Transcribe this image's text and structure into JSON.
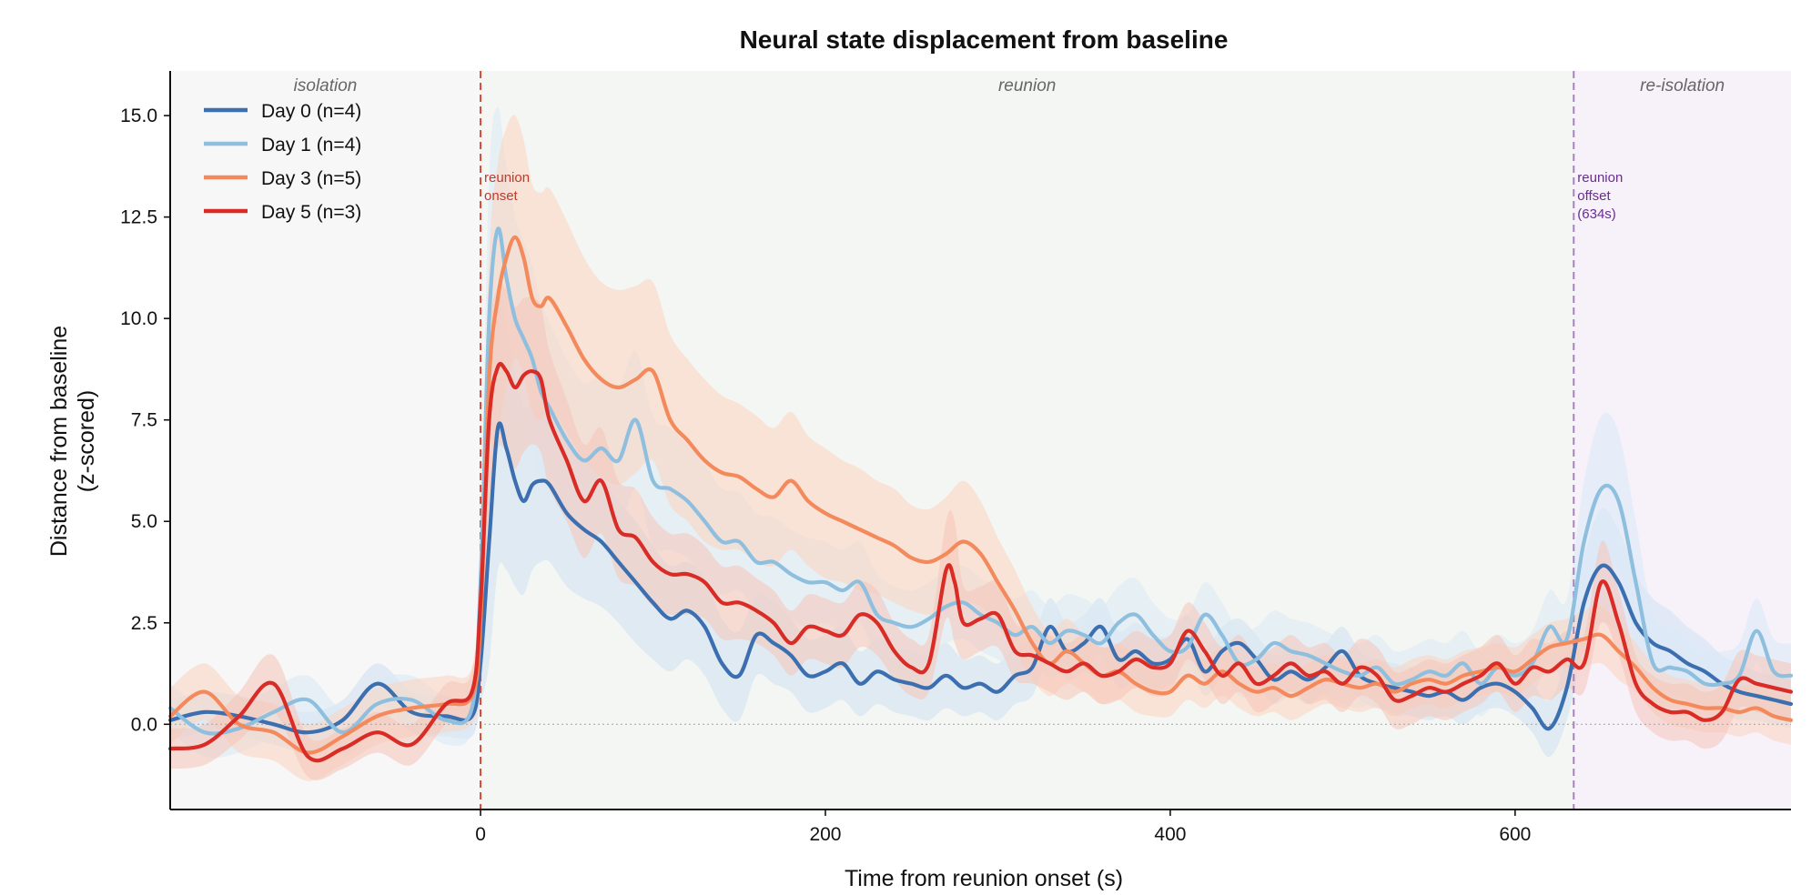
{
  "chart_data": {
    "type": "line",
    "title": "Neural state displacement from baseline",
    "xlabel": "Time from reunion onset (s)",
    "ylabel": [
      "Distance from baseline",
      "(z-scored)"
    ],
    "xlim": [
      -180,
      760
    ],
    "ylim": [
      -2.1,
      16.1
    ],
    "x_ticks": [
      0,
      200,
      400,
      600
    ],
    "y_ticks": [
      0.0,
      2.5,
      5.0,
      7.5,
      10.0,
      12.5,
      15.0
    ],
    "x_tick_labels": [
      "0",
      "200",
      "400",
      "600"
    ],
    "y_tick_labels": [
      "0.0",
      "2.5",
      "5.0",
      "7.5",
      "10.0",
      "12.5",
      "15.0"
    ],
    "grid": false,
    "legend_position": "top-left",
    "baseline_y": 0,
    "regions": [
      {
        "label": "isolation",
        "x0": -180,
        "x1": 0,
        "color": "#f7f7f7"
      },
      {
        "label": "reunion",
        "x0": 0,
        "x1": 634,
        "color": "#f3f6f2"
      },
      {
        "label": "re-isolation",
        "x0": 634,
        "x1": 760,
        "color": "#f7f1fa"
      }
    ],
    "vlines": [
      {
        "x": 0,
        "color": "#d94a3a",
        "label": [
          "reunion",
          "onset"
        ]
      },
      {
        "x": 634,
        "color": "#a882c0",
        "label": [
          "reunion",
          "offset",
          "(634s)"
        ]
      }
    ],
    "series": [
      {
        "name": "Day 0  (n=4)",
        "color": "#3b6fb0",
        "band_color": "#cfe0f3",
        "x": [
          -180,
          -160,
          -140,
          -120,
          -100,
          -80,
          -60,
          -40,
          -20,
          -5,
          0,
          5,
          10,
          15,
          20,
          25,
          30,
          35,
          40,
          50,
          60,
          70,
          80,
          90,
          100,
          110,
          120,
          130,
          140,
          150,
          160,
          170,
          180,
          190,
          200,
          210,
          220,
          230,
          240,
          250,
          260,
          270,
          280,
          290,
          300,
          310,
          320,
          330,
          340,
          350,
          360,
          370,
          380,
          390,
          400,
          410,
          420,
          430,
          440,
          450,
          460,
          470,
          480,
          490,
          500,
          510,
          520,
          530,
          540,
          550,
          560,
          570,
          580,
          590,
          600,
          610,
          620,
          630,
          640,
          650,
          660,
          670,
          680,
          690,
          700,
          710,
          720,
          730,
          740,
          750,
          760
        ],
        "y": [
          0.1,
          0.3,
          0.2,
          0.0,
          -0.2,
          0.1,
          1.0,
          0.3,
          0.2,
          0.2,
          1.5,
          4.5,
          7.3,
          6.8,
          6.0,
          5.5,
          5.9,
          6.0,
          5.9,
          5.2,
          4.8,
          4.5,
          4.0,
          3.5,
          3.0,
          2.6,
          2.8,
          2.4,
          1.5,
          1.2,
          2.2,
          2.0,
          1.7,
          1.2,
          1.3,
          1.5,
          1.0,
          1.3,
          1.1,
          1.0,
          0.9,
          1.2,
          0.9,
          1.0,
          0.8,
          1.2,
          1.4,
          2.4,
          1.8,
          2.0,
          2.4,
          1.6,
          1.8,
          1.5,
          1.6,
          2.1,
          1.3,
          1.8,
          2.0,
          1.6,
          1.1,
          1.3,
          1.1,
          1.4,
          1.8,
          1.2,
          1.0,
          0.9,
          0.8,
          0.7,
          0.8,
          0.6,
          0.9,
          1.0,
          0.8,
          0.4,
          -0.1,
          0.9,
          3.0,
          3.9,
          3.5,
          2.5,
          2.0,
          1.8,
          1.5,
          1.3,
          1.0,
          0.8,
          0.7,
          0.6,
          0.5
        ],
        "err": [
          0.5,
          0.5,
          0.5,
          0.5,
          0.5,
          0.5,
          0.5,
          0.5,
          0.5,
          0.5,
          1.0,
          3.0,
          3.5,
          3.0,
          2.6,
          2.3,
          2.1,
          2.0,
          1.9,
          1.8,
          1.7,
          1.6,
          1.5,
          1.5,
          1.4,
          1.3,
          1.2,
          1.2,
          1.1,
          1.1,
          1.0,
          1.0,
          0.9,
          0.9,
          0.9,
          0.9,
          0.8,
          0.8,
          0.8,
          0.8,
          0.8,
          0.8,
          0.7,
          0.7,
          0.7,
          0.7,
          0.7,
          0.7,
          0.7,
          0.7,
          0.7,
          0.7,
          0.7,
          0.7,
          0.6,
          0.6,
          0.6,
          0.6,
          0.6,
          0.6,
          0.6,
          0.6,
          0.6,
          0.6,
          0.6,
          0.6,
          0.6,
          0.6,
          0.6,
          0.6,
          0.6,
          0.6,
          0.6,
          0.6,
          0.6,
          0.6,
          0.7,
          0.8,
          1.1,
          1.4,
          1.3,
          1.2,
          1.1,
          1.0,
          0.9,
          0.8,
          0.7,
          0.7,
          0.6,
          0.6,
          0.6
        ]
      },
      {
        "name": "Day 1  (n=4)",
        "color": "#8ebfde",
        "band_color": "#dbe9f6",
        "x": [
          -180,
          -160,
          -140,
          -120,
          -100,
          -80,
          -60,
          -40,
          -20,
          -5,
          0,
          5,
          10,
          15,
          20,
          25,
          30,
          35,
          40,
          50,
          60,
          70,
          80,
          90,
          100,
          110,
          120,
          130,
          140,
          150,
          160,
          170,
          180,
          190,
          200,
          210,
          220,
          230,
          240,
          250,
          260,
          270,
          280,
          290,
          300,
          310,
          320,
          330,
          340,
          350,
          360,
          370,
          380,
          390,
          400,
          410,
          420,
          430,
          440,
          450,
          460,
          470,
          480,
          490,
          500,
          510,
          520,
          530,
          540,
          550,
          560,
          570,
          580,
          590,
          600,
          610,
          620,
          630,
          640,
          650,
          660,
          670,
          680,
          690,
          700,
          710,
          720,
          730,
          740,
          750,
          760
        ],
        "y": [
          0.4,
          -0.2,
          -0.1,
          0.3,
          0.6,
          -0.2,
          0.5,
          0.6,
          0.1,
          0.4,
          3.5,
          10.0,
          12.2,
          11.0,
          10.0,
          9.5,
          9.0,
          8.2,
          7.8,
          7.0,
          6.5,
          6.8,
          6.5,
          7.5,
          6.0,
          5.8,
          5.5,
          5.0,
          4.5,
          4.5,
          4.0,
          4.0,
          3.7,
          3.5,
          3.5,
          3.3,
          3.5,
          2.7,
          2.5,
          2.4,
          2.6,
          2.9,
          3.0,
          2.7,
          2.5,
          2.2,
          2.4,
          2.0,
          2.3,
          2.2,
          2.0,
          2.5,
          2.7,
          2.2,
          1.8,
          1.9,
          2.7,
          2.2,
          1.5,
          1.6,
          2.0,
          1.8,
          1.7,
          1.5,
          1.3,
          1.2,
          1.4,
          1.0,
          1.1,
          1.3,
          1.2,
          1.5,
          1.0,
          1.4,
          1.2,
          1.5,
          2.4,
          2.1,
          4.5,
          5.8,
          5.5,
          3.5,
          1.5,
          1.4,
          1.3,
          1.0,
          1.0,
          1.2,
          2.3,
          1.3,
          1.2
        ],
        "err": [
          0.6,
          0.6,
          0.6,
          0.6,
          0.6,
          0.6,
          0.6,
          0.6,
          0.6,
          0.6,
          1.5,
          3.5,
          3.0,
          2.7,
          2.5,
          2.4,
          2.3,
          2.2,
          2.1,
          2.0,
          1.9,
          1.8,
          1.8,
          1.7,
          1.6,
          1.5,
          1.4,
          1.4,
          1.3,
          1.2,
          1.2,
          1.1,
          1.1,
          1.1,
          1.0,
          1.0,
          1.0,
          1.0,
          0.9,
          0.9,
          0.9,
          0.9,
          0.9,
          0.9,
          0.9,
          0.9,
          0.9,
          0.9,
          0.9,
          0.9,
          0.9,
          0.9,
          0.9,
          0.8,
          0.8,
          0.8,
          0.8,
          0.8,
          0.8,
          0.8,
          0.8,
          0.8,
          0.8,
          0.8,
          0.8,
          0.8,
          0.8,
          0.8,
          0.8,
          0.8,
          0.8,
          0.8,
          0.8,
          0.8,
          0.8,
          0.8,
          0.9,
          1.0,
          1.5,
          1.8,
          1.7,
          1.5,
          1.2,
          1.0,
          0.9,
          0.8,
          0.8,
          0.8,
          0.8,
          0.8,
          0.8
        ]
      },
      {
        "name": "Day 3  (n=5)",
        "color": "#f4895c",
        "band_color": "#fbd3c0",
        "x": [
          -180,
          -160,
          -140,
          -120,
          -100,
          -80,
          -60,
          -40,
          -20,
          -5,
          0,
          5,
          10,
          15,
          20,
          25,
          30,
          35,
          40,
          50,
          60,
          70,
          80,
          90,
          100,
          110,
          120,
          130,
          140,
          150,
          160,
          170,
          180,
          190,
          200,
          210,
          220,
          230,
          240,
          250,
          260,
          270,
          280,
          290,
          300,
          310,
          320,
          330,
          340,
          350,
          360,
          370,
          380,
          390,
          400,
          410,
          420,
          430,
          440,
          450,
          460,
          470,
          480,
          490,
          500,
          510,
          520,
          530,
          540,
          550,
          560,
          570,
          580,
          590,
          600,
          610,
          620,
          630,
          640,
          650,
          660,
          670,
          680,
          690,
          700,
          710,
          720,
          730,
          740,
          750,
          760
        ],
        "y": [
          0.2,
          0.8,
          0.0,
          -0.2,
          -0.7,
          -0.3,
          0.2,
          0.4,
          0.5,
          0.7,
          2.5,
          8.5,
          10.5,
          11.5,
          12.0,
          11.5,
          10.5,
          10.3,
          10.5,
          9.8,
          9.0,
          8.5,
          8.3,
          8.5,
          8.7,
          7.5,
          7.0,
          6.5,
          6.2,
          6.1,
          5.8,
          5.6,
          6.0,
          5.5,
          5.2,
          5.0,
          4.8,
          4.6,
          4.4,
          4.1,
          4.0,
          4.2,
          4.5,
          4.2,
          3.5,
          2.8,
          2.0,
          1.5,
          1.8,
          1.5,
          1.2,
          1.3,
          1.0,
          0.8,
          0.8,
          1.2,
          1.0,
          1.3,
          1.0,
          0.8,
          0.9,
          0.7,
          0.9,
          1.1,
          1.0,
          0.9,
          1.0,
          0.8,
          1.0,
          1.1,
          1.0,
          1.2,
          1.3,
          1.4,
          1.3,
          1.6,
          1.9,
          2.0,
          2.1,
          2.2,
          1.8,
          1.4,
          0.9,
          0.6,
          0.5,
          0.4,
          0.4,
          0.3,
          0.4,
          0.2,
          0.1
        ],
        "err": [
          0.7,
          0.7,
          0.7,
          0.7,
          0.7,
          0.7,
          0.7,
          0.7,
          0.7,
          0.7,
          1.5,
          3.0,
          3.3,
          3.2,
          3.0,
          2.9,
          2.8,
          2.8,
          2.7,
          2.6,
          2.5,
          2.4,
          2.4,
          2.3,
          2.2,
          2.1,
          2.0,
          2.0,
          1.9,
          1.8,
          1.8,
          1.7,
          1.7,
          1.6,
          1.6,
          1.5,
          1.5,
          1.4,
          1.4,
          1.3,
          1.3,
          1.4,
          1.5,
          1.3,
          1.1,
          1.0,
          0.9,
          0.8,
          0.8,
          0.7,
          0.7,
          0.7,
          0.7,
          0.6,
          0.6,
          0.6,
          0.6,
          0.6,
          0.6,
          0.6,
          0.6,
          0.6,
          0.6,
          0.6,
          0.6,
          0.6,
          0.6,
          0.6,
          0.6,
          0.6,
          0.6,
          0.6,
          0.6,
          0.6,
          0.6,
          0.6,
          0.6,
          0.6,
          0.7,
          0.7,
          0.7,
          0.6,
          0.6,
          0.6,
          0.6,
          0.6,
          0.6,
          0.6,
          0.6,
          0.6,
          0.6
        ]
      },
      {
        "name": "Day 5  (n=3)",
        "color": "#d92c26",
        "band_color": "#f6c4b8",
        "x": [
          -180,
          -160,
          -140,
          -120,
          -100,
          -80,
          -60,
          -40,
          -20,
          -5,
          0,
          5,
          10,
          15,
          20,
          25,
          30,
          35,
          40,
          50,
          60,
          70,
          80,
          90,
          100,
          110,
          120,
          130,
          140,
          150,
          160,
          170,
          180,
          190,
          200,
          210,
          220,
          230,
          240,
          250,
          260,
          270,
          275,
          280,
          290,
          300,
          310,
          320,
          330,
          340,
          350,
          360,
          370,
          380,
          390,
          400,
          410,
          420,
          430,
          440,
          450,
          460,
          470,
          480,
          490,
          500,
          510,
          520,
          530,
          540,
          550,
          560,
          570,
          580,
          590,
          600,
          610,
          620,
          630,
          640,
          650,
          660,
          670,
          680,
          690,
          700,
          710,
          720,
          730,
          740,
          750,
          760
        ],
        "y": [
          -0.6,
          -0.5,
          0.2,
          1.0,
          -0.8,
          -0.6,
          -0.2,
          -0.5,
          0.5,
          0.8,
          3.0,
          7.5,
          8.8,
          8.7,
          8.3,
          8.6,
          8.7,
          8.5,
          7.5,
          6.5,
          5.5,
          6.0,
          4.8,
          4.6,
          4.0,
          3.7,
          3.7,
          3.5,
          3.0,
          3.0,
          2.8,
          2.5,
          2.0,
          2.4,
          2.3,
          2.2,
          2.7,
          2.5,
          1.8,
          1.4,
          1.5,
          3.8,
          3.5,
          2.5,
          2.6,
          2.7,
          1.8,
          1.7,
          1.5,
          1.3,
          1.5,
          1.2,
          1.3,
          1.6,
          1.4,
          1.5,
          2.3,
          1.8,
          1.2,
          1.5,
          1.0,
          1.2,
          1.5,
          1.2,
          1.3,
          1.0,
          1.4,
          1.2,
          0.6,
          0.7,
          0.9,
          0.8,
          1.0,
          1.2,
          1.5,
          1.0,
          1.4,
          1.3,
          1.6,
          1.5,
          3.5,
          2.5,
          1.0,
          0.5,
          0.3,
          0.3,
          0.1,
          0.3,
          1.1,
          1.0,
          0.9,
          0.8
        ],
        "err": [
          0.5,
          0.5,
          0.6,
          0.7,
          0.5,
          0.5,
          0.5,
          0.5,
          0.5,
          0.5,
          1.5,
          2.0,
          2.0,
          2.0,
          2.0,
          1.9,
          1.8,
          1.8,
          1.7,
          1.5,
          1.4,
          1.3,
          1.2,
          1.2,
          1.1,
          1.0,
          1.0,
          0.9,
          0.9,
          0.9,
          0.8,
          0.8,
          0.8,
          0.8,
          0.8,
          0.8,
          0.8,
          0.8,
          0.7,
          0.7,
          0.7,
          1.2,
          1.5,
          0.9,
          0.8,
          0.8,
          0.7,
          0.7,
          0.7,
          0.7,
          0.7,
          0.7,
          0.7,
          0.7,
          0.7,
          0.7,
          0.7,
          0.7,
          0.7,
          0.7,
          0.7,
          0.7,
          0.7,
          0.7,
          0.7,
          0.7,
          0.7,
          0.7,
          0.7,
          0.7,
          0.7,
          0.7,
          0.7,
          0.7,
          0.7,
          0.7,
          0.7,
          0.7,
          0.7,
          0.7,
          1.0,
          0.8,
          0.7,
          0.7,
          0.7,
          0.7,
          0.7,
          0.7,
          0.7,
          0.7,
          0.7,
          0.7
        ]
      }
    ]
  }
}
